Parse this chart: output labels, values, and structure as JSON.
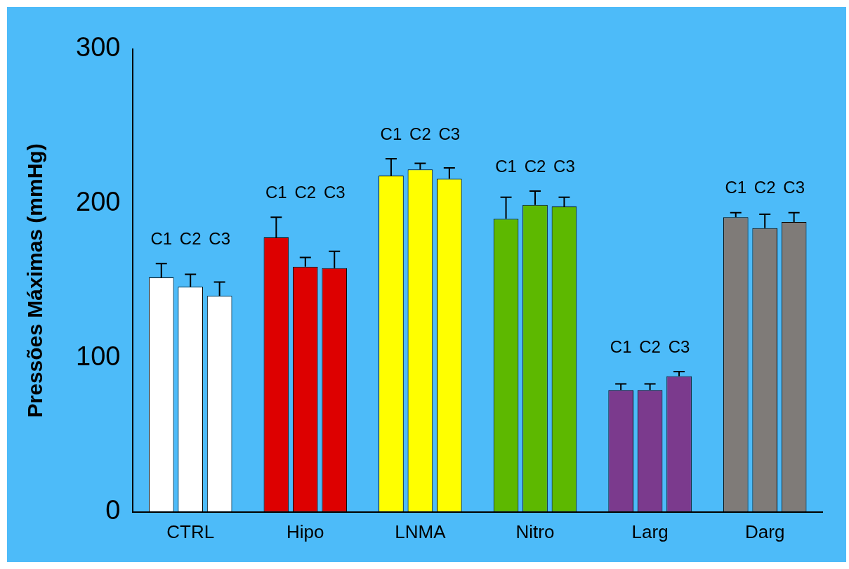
{
  "chart_data": {
    "type": "bar",
    "ylabel": "Pressões Máximas (mmHg)",
    "categories": [
      "CTRL",
      "Hipo",
      "LNMA",
      "Nitro",
      "Larg",
      "Darg"
    ],
    "series": [
      {
        "name": "C1",
        "colors": [
          "#ffffff",
          "#dd0000",
          "#ffff00",
          "#5db800",
          "#7b3a8d",
          "#7f7b78"
        ],
        "values": [
          152,
          178,
          218,
          190,
          79,
          191
        ],
        "errors": [
          [
            152,
            161
          ],
          [
            178,
            191
          ],
          [
            218,
            229
          ],
          [
            190,
            204
          ],
          [
            79,
            83
          ],
          [
            191,
            194
          ]
        ]
      },
      {
        "name": "C2",
        "colors": [
          "#ffffff",
          "#dd0000",
          "#ffff00",
          "#5db800",
          "#7b3a8d",
          "#7f7b78"
        ],
        "values": [
          146,
          159,
          222,
          199,
          79,
          184
        ],
        "errors": [
          [
            146,
            154
          ],
          [
            159,
            165
          ],
          [
            222,
            226
          ],
          [
            199,
            208
          ],
          [
            79,
            83
          ],
          [
            184,
            193
          ]
        ]
      },
      {
        "name": "C3",
        "colors": [
          "#ffffff",
          "#dd0000",
          "#ffff00",
          "#5db800",
          "#7b3a8d",
          "#7f7b78"
        ],
        "values": [
          140,
          158,
          216,
          198,
          88,
          188
        ],
        "errors": [
          [
            140,
            149
          ],
          [
            158,
            169
          ],
          [
            216,
            223
          ],
          [
            198,
            204
          ],
          [
            88,
            91
          ],
          [
            188,
            194
          ]
        ]
      }
    ],
    "ylim": [
      0,
      300
    ],
    "yticks": [
      0,
      100,
      200,
      300
    ],
    "grid": false,
    "legend": false
  }
}
